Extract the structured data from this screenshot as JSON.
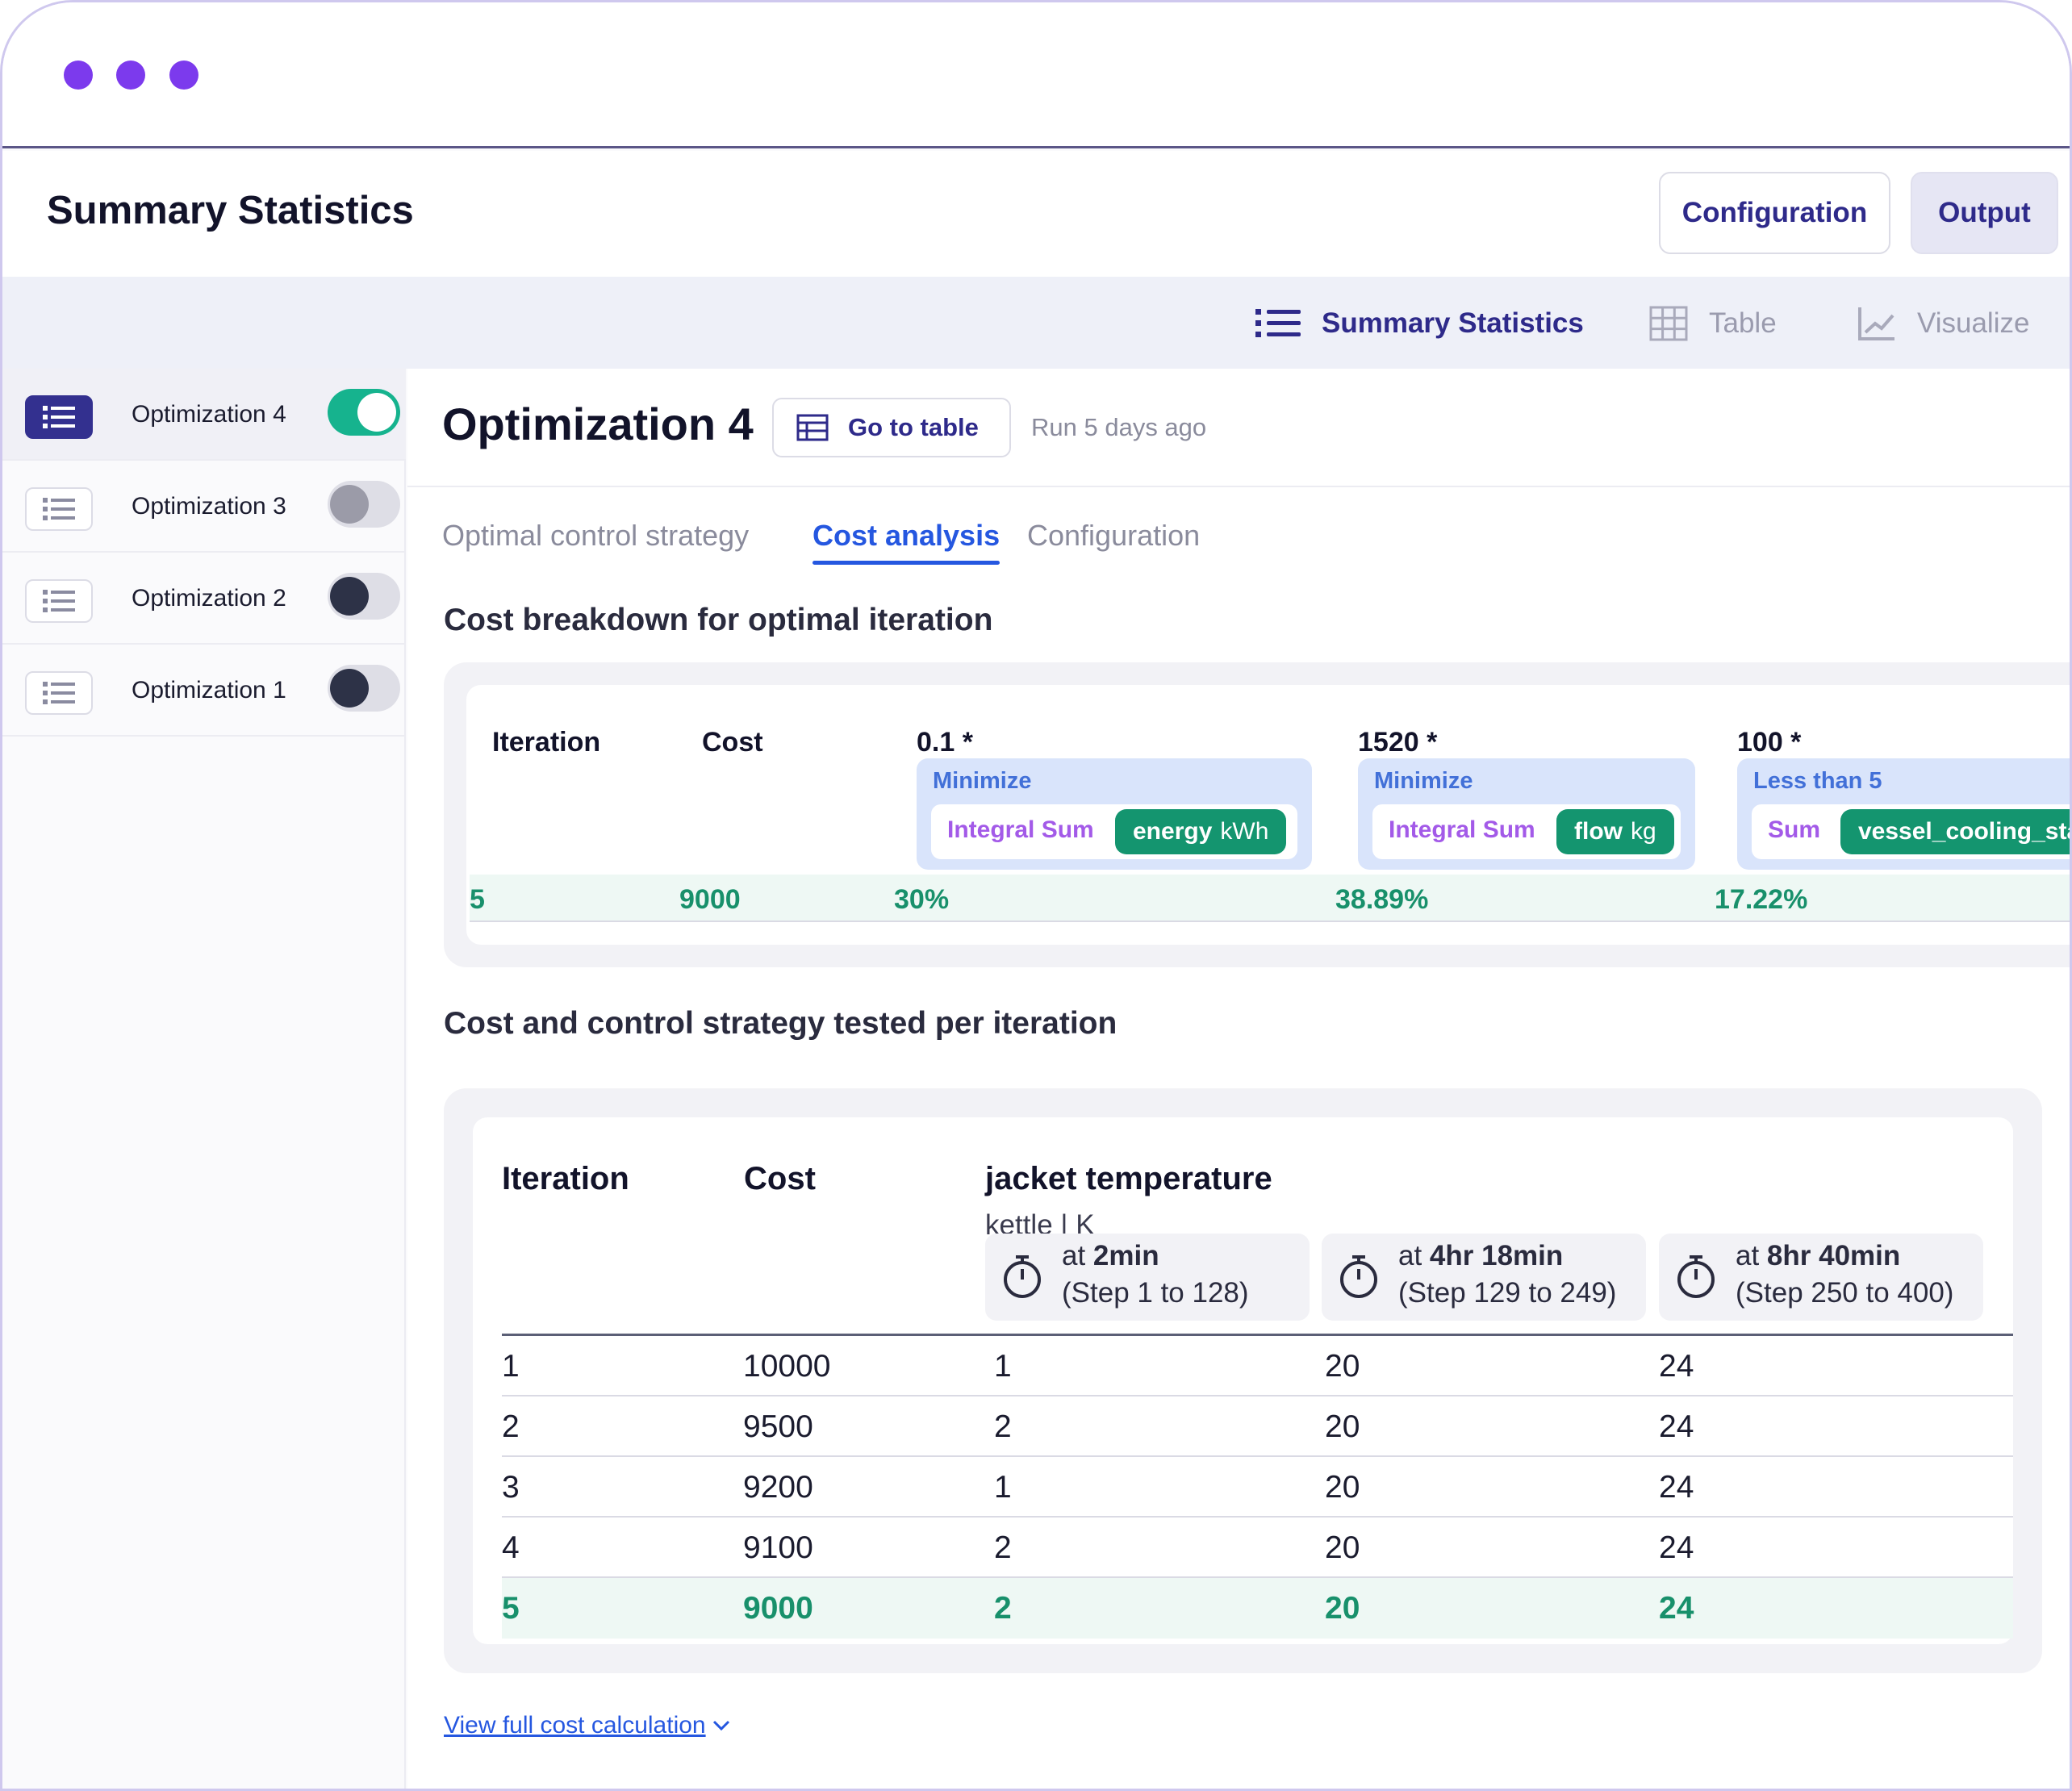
{
  "header": {
    "title": "Summary Statistics",
    "configuration_label": "Configuration",
    "output_label": "Output"
  },
  "view_tabs": [
    {
      "label": "Summary Statistics",
      "icon": "list-icon",
      "active": true
    },
    {
      "label": "Table",
      "icon": "grid-icon",
      "active": false
    },
    {
      "label": "Visualize",
      "icon": "line-chart-icon",
      "active": false
    }
  ],
  "sidebar": {
    "items": [
      {
        "label": "Optimization 4",
        "enabled": true,
        "active": true
      },
      {
        "label": "Optimization 3",
        "enabled": false,
        "active": false
      },
      {
        "label": "Optimization 2",
        "enabled": false,
        "active": false
      },
      {
        "label": "Optimization 1",
        "enabled": false,
        "active": false
      }
    ]
  },
  "main": {
    "title": "Optimization 4",
    "goto_table_label": "Go to table",
    "run_info": "Run 5 days ago",
    "tabs": [
      {
        "label": "Optimal control strategy",
        "active": false
      },
      {
        "label": "Cost analysis",
        "active": true
      },
      {
        "label": "Configuration",
        "active": false
      }
    ]
  },
  "cost_breakdown": {
    "title": "Cost breakdown for optimal iteration",
    "headers": {
      "iteration": "Iteration",
      "cost": "Cost"
    },
    "objectives": [
      {
        "weight": "0.1 *",
        "mode": "Minimize",
        "aggregation": "Integral Sum",
        "variable": "energy",
        "unit": "kWh"
      },
      {
        "weight": "1520 *",
        "mode": "Minimize",
        "aggregation": "Integral Sum",
        "variable": "flow",
        "unit": "kg"
      },
      {
        "weight": "100 *",
        "mode": "Less than 5",
        "aggregation": "Sum",
        "variable": "vessel_cooling_stat",
        "unit": ""
      }
    ],
    "row": {
      "iteration": "5",
      "cost": "9000",
      "shares": [
        "30%",
        "38.89%",
        "17.22%"
      ]
    }
  },
  "per_iteration": {
    "title": "Cost and control strategy tested per iteration",
    "headers": {
      "iteration": "Iteration",
      "cost": "Cost",
      "variable": "jacket temperature",
      "variable_sub": "kettle | K"
    },
    "steps": [
      {
        "prefix": "at ",
        "time": "2min",
        "range": "(Step 1 to 128)"
      },
      {
        "prefix": "at ",
        "time": "4hr 18min",
        "range": "(Step 129 to 249)"
      },
      {
        "prefix": "at ",
        "time": "8hr 40min",
        "range": "(Step 250 to 400)"
      }
    ],
    "rows": [
      {
        "iteration": "1",
        "cost": "10000",
        "v1": "1",
        "v2": "20",
        "v3": "24"
      },
      {
        "iteration": "2",
        "cost": "9500",
        "v1": "2",
        "v2": "20",
        "v3": "24"
      },
      {
        "iteration": "3",
        "cost": "9200",
        "v1": "1",
        "v2": "20",
        "v3": "24"
      },
      {
        "iteration": "4",
        "cost": "9100",
        "v1": "2",
        "v2": "20",
        "v3": "24"
      },
      {
        "iteration": "5",
        "cost": "9000",
        "v1": "2",
        "v2": "20",
        "v3": "24"
      }
    ],
    "highlighted_row": 4
  },
  "footer_link": "View full cost calculation",
  "colors": {
    "accent": "#2e2a8a",
    "link": "#2557e0",
    "success": "#18906b",
    "toggle_on": "#16b38e",
    "window_dots": "#7c3aed"
  }
}
